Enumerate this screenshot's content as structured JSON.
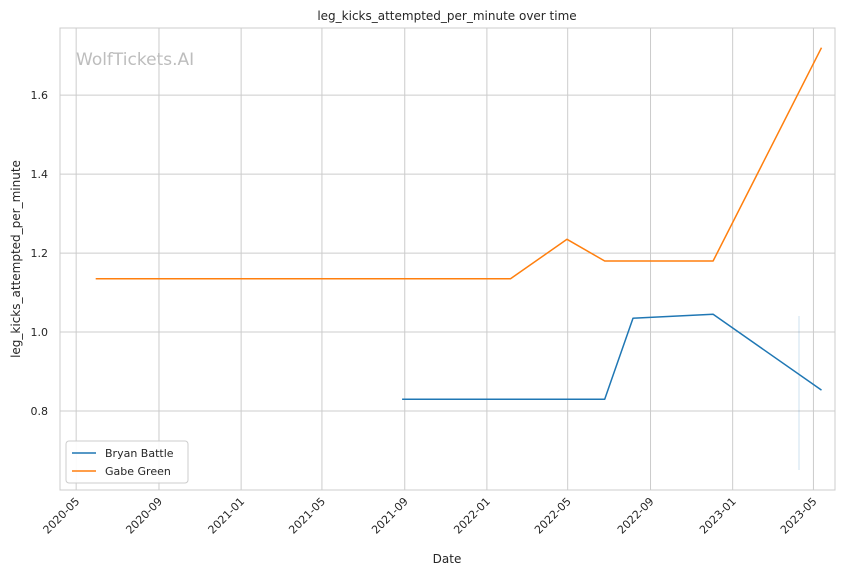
{
  "chart_data": {
    "type": "line",
    "title": "leg_kicks_attempted_per_minute over time",
    "xlabel": "Date",
    "ylabel": "leg_kicks_attempted_per_minute",
    "watermark": "WolfTickets.AI",
    "x_ticks": [
      "2020-05-01",
      "2020-09-01",
      "2021-01-01",
      "2021-05-01",
      "2021-09-01",
      "2022-01-01",
      "2022-05-01",
      "2022-09-01",
      "2023-01-01",
      "2023-05-01"
    ],
    "x_tick_labels": [
      "2020-05",
      "2020-09",
      "2021-01",
      "2021-05",
      "2021-09",
      "2022-01",
      "2022-05",
      "2022-09",
      "2023-01",
      "2023-05"
    ],
    "y_ticks": [
      0.8,
      1.0,
      1.2,
      1.4,
      1.6
    ],
    "y_tick_labels": [
      "0.8",
      "1.0",
      "1.2",
      "1.4",
      "1.6"
    ],
    "xlim": [
      "2020-04-07",
      "2023-06-02"
    ],
    "ylim": [
      0.6,
      1.77
    ],
    "grid": true,
    "legend_position": "lower-left",
    "series": [
      {
        "name": "Bryan Battle",
        "color": "#1f77b4",
        "x": [
          "2021-08-28",
          "2022-06-25",
          "2022-08-06",
          "2022-12-03",
          "2023-05-13"
        ],
        "y": [
          0.83,
          0.83,
          1.035,
          1.045,
          0.853
        ]
      },
      {
        "name": "Gabe Green",
        "color": "#ff7f0e",
        "x": [
          "2020-05-30",
          "2022-02-05",
          "2022-04-30",
          "2022-06-25",
          "2022-12-03",
          "2023-05-13"
        ],
        "y": [
          1.135,
          1.135,
          1.235,
          1.18,
          1.18,
          1.72
        ]
      }
    ]
  }
}
